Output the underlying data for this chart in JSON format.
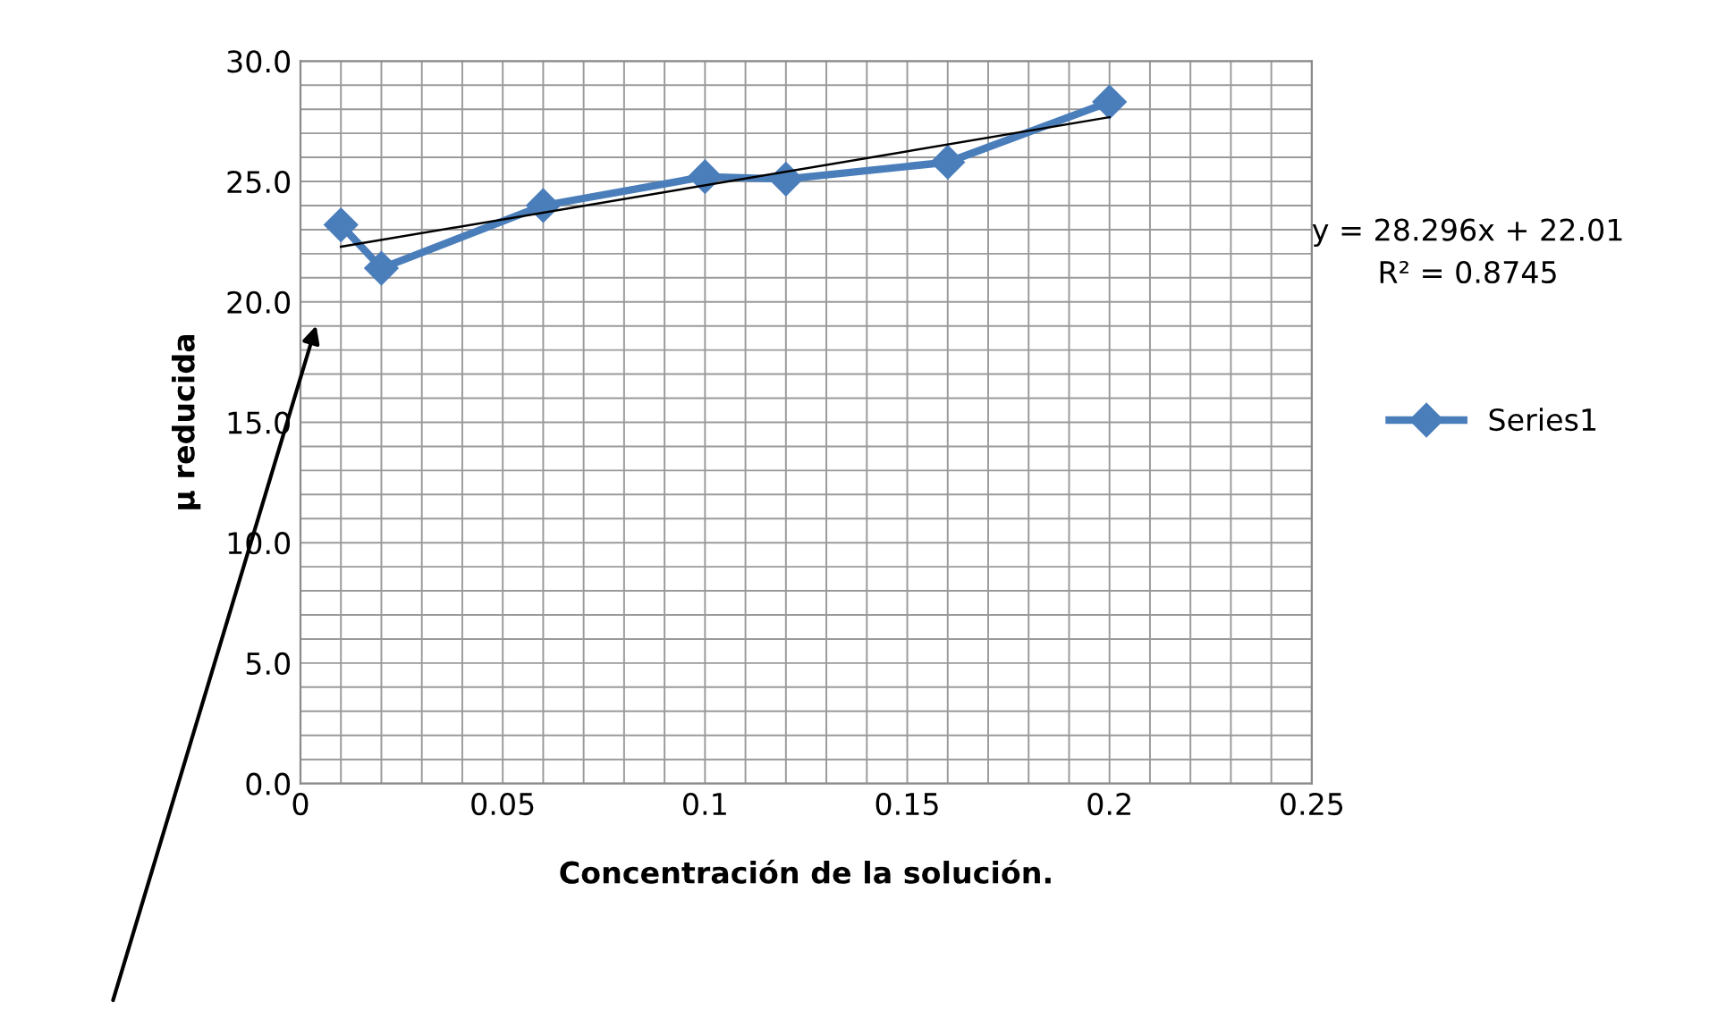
{
  "chart_data": {
    "type": "line",
    "xlabel": "Concentración de la solución.",
    "ylabel": "µ reducida",
    "series": [
      {
        "name": "Series1",
        "color": "#4a7ebb",
        "x": [
          0.01,
          0.02,
          0.06,
          0.1,
          0.12,
          0.16,
          0.2
        ],
        "values": [
          23.2,
          21.4,
          24.0,
          25.2,
          25.1,
          25.8,
          28.3
        ],
        "marker": "diamond"
      },
      {
        "type": "line",
        "color": "#000000",
        "x": [
          0.01,
          0.2
        ],
        "values": [
          22.29,
          27.67
        ],
        "marker": "none"
      }
    ],
    "annotations": [
      "y = 28.296x + 22.01\nR² = 0.8745"
    ],
    "xlim": [
      0,
      0.25
    ],
    "ylim": [
      0,
      30
    ],
    "xticks": [
      0,
      {
        "value": 0.01,
        "label": null
      },
      {
        "value": 0.02,
        "label": null
      },
      {
        "value": 0.03,
        "label": null
      },
      {
        "value": 0.04,
        "label": null
      },
      0.05,
      {
        "value": 0.06,
        "label": null
      },
      {
        "value": 0.07,
        "label": null
      },
      {
        "value": 0.08,
        "label": null
      },
      {
        "value": 0.09,
        "label": null
      },
      0.1,
      {
        "value": 0.11,
        "label": null
      },
      {
        "value": 0.12,
        "label": null
      },
      {
        "value": 0.13,
        "label": null
      },
      {
        "value": 0.14,
        "label": null
      },
      0.15,
      {
        "value": 0.16,
        "label": null
      },
      {
        "value": 0.17,
        "label": null
      },
      {
        "value": 0.18,
        "label": null
      },
      {
        "value": 0.19,
        "label": null
      },
      0.2,
      {
        "value": 0.21,
        "label": null
      },
      {
        "value": 0.22,
        "label": null
      },
      {
        "value": 0.23,
        "label": null
      },
      {
        "value": 0.24,
        "label": null
      },
      0.25
    ],
    "yticks": [
      {
        "value": 0,
        "label": "0.0"
      },
      {
        "value": 1,
        "label": null
      },
      {
        "value": 2,
        "label": null
      },
      {
        "value": 3,
        "label": null
      },
      {
        "value": 4,
        "label": null
      },
      {
        "value": 5,
        "label": "5.0"
      },
      {
        "value": 6,
        "label": null
      },
      {
        "value": 7,
        "label": null
      },
      {
        "value": 8,
        "label": null
      },
      {
        "value": 9,
        "label": null
      },
      {
        "value": 10,
        "label": "10.0"
      },
      {
        "value": 11,
        "label": null
      },
      {
        "value": 12,
        "label": null
      },
      {
        "value": 13,
        "label": null
      },
      {
        "value": 14,
        "label": null
      },
      {
        "value": 15,
        "label": "15.0"
      },
      {
        "value": 16,
        "label": null
      },
      {
        "value": 17,
        "label": null
      },
      {
        "value": 18,
        "label": null
      },
      {
        "value": 19,
        "label": null
      },
      {
        "value": 20,
        "label": "20.0"
      },
      {
        "value": 21,
        "label": null
      },
      {
        "value": 22,
        "label": null
      },
      {
        "value": 23,
        "label": null
      },
      {
        "value": 24,
        "label": null
      },
      {
        "value": 25,
        "label": "25.0"
      },
      {
        "value": 26,
        "label": null
      },
      {
        "value": 27,
        "label": null
      },
      {
        "value": 28,
        "label": null
      },
      {
        "value": 29,
        "label": null
      },
      {
        "value": 30,
        "label": "30.0"
      }
    ],
    "grid": true,
    "legend": "right",
    "line_style": "solid"
  }
}
